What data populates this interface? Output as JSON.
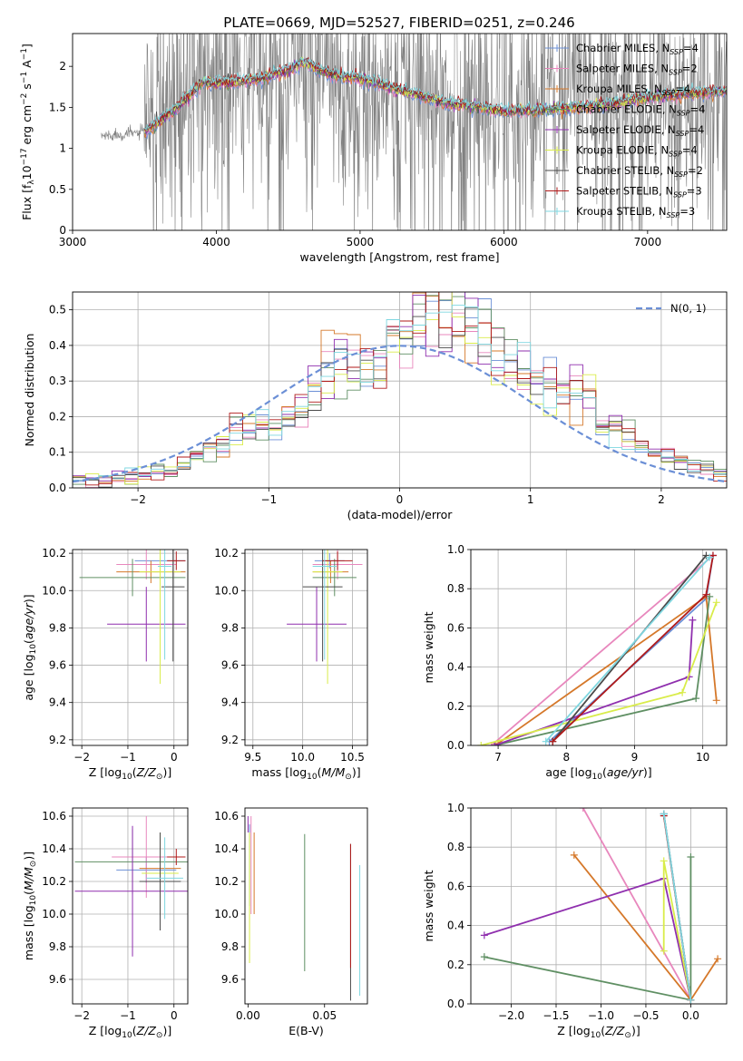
{
  "figure": {
    "title": "PLATE=0669, MJD=52527, FIBERID=0251, z=0.246"
  },
  "colors": {
    "grid": "#b0b0b0",
    "data_spectrum": "#808080",
    "series": [
      "#6b8fd6",
      "#e887bd",
      "#d5782a",
      "#5f8f63",
      "#8f2fae",
      "#d9ec4a",
      "#4a4a4a",
      "#b01a1a",
      "#7fd7e0"
    ]
  },
  "chart_data": [
    {
      "id": "spectrum",
      "type": "line",
      "xlabel": "wavelength [Angstrom, rest frame]",
      "ylabel": "Flux [f_λ 10^-17 erg cm^-2 s^-1 A^-1]",
      "xlim": [
        3000,
        7550
      ],
      "ylim": [
        0.0,
        2.4
      ],
      "xticks": [
        3000,
        4000,
        5000,
        6000,
        7000
      ],
      "yticks": [
        0.0,
        0.5,
        1.0,
        1.5,
        2.0
      ],
      "grid": false,
      "legend": "top-right",
      "data_range": [
        3200,
        7550
      ],
      "model_range": [
        3500,
        7550
      ],
      "model_shape": {
        "wavelength": [
          3200,
          3500,
          3700,
          3900,
          4100,
          4300,
          4500,
          4600,
          4800,
          5000,
          5300,
          5600,
          6000,
          6400,
          6800,
          7000,
          7200,
          7550
        ],
        "flux": [
          1.15,
          1.2,
          1.45,
          1.8,
          1.8,
          1.85,
          1.95,
          2.05,
          1.9,
          1.85,
          1.7,
          1.55,
          1.45,
          1.48,
          1.55,
          1.62,
          1.65,
          1.7
        ]
      },
      "series": [
        {
          "name": "Chabrier MILES, N_SSP=4"
        },
        {
          "name": "Salpeter MILES, N_SSP=2"
        },
        {
          "name": "Kroupa MILES, N_SSP=4"
        },
        {
          "name": "Chabrier ELODIE, N_SSP=4"
        },
        {
          "name": "Salpeter ELODIE, N_SSP=4"
        },
        {
          "name": "Kroupa ELODIE, N_SSP=4"
        },
        {
          "name": "Chabrier STELIB, N_SSP=2"
        },
        {
          "name": "Salpeter STELIB, N_SSP=3"
        },
        {
          "name": "Kroupa STELIB, N_SSP=3"
        }
      ]
    },
    {
      "id": "residuals",
      "type": "histogram",
      "xlabel": "(data-model)/error",
      "ylabel": "Normed distribution",
      "xlim": [
        -2.5,
        2.5
      ],
      "ylim": [
        0.0,
        0.55
      ],
      "xticks": [
        -2,
        -1,
        0,
        1,
        2
      ],
      "yticks": [
        0.0,
        0.1,
        0.2,
        0.3,
        0.4,
        0.5
      ],
      "grid": true,
      "legend": "top-right",
      "reference_label": "N(0, 1)",
      "bin_width": 0.1,
      "bin_start": -2.5,
      "values": [
        0.02,
        0.02,
        0.02,
        0.03,
        0.03,
        0.04,
        0.05,
        0.05,
        0.06,
        0.09,
        0.11,
        0.12,
        0.16,
        0.17,
        0.18,
        0.15,
        0.2,
        0.22,
        0.27,
        0.32,
        0.36,
        0.35,
        0.33,
        0.36,
        0.42,
        0.45,
        0.5,
        0.47,
        0.44,
        0.5,
        0.46,
        0.44,
        0.36,
        0.35,
        0.33,
        0.3,
        0.28,
        0.27,
        0.28,
        0.26,
        0.18,
        0.16,
        0.15,
        0.13,
        0.1,
        0.09,
        0.07,
        0.06,
        0.05,
        0.04
      ]
    },
    {
      "id": "age-vs-Z",
      "type": "errorbar",
      "xlabel": "Z [log10(Z/Z_sun)]",
      "ylabel": "age [log10(age/yr)]",
      "xlim": [
        -2.2,
        0.3
      ],
      "ylim": [
        9.17,
        10.22
      ],
      "xticks": [
        -2,
        -1,
        0
      ],
      "yticks": [
        9.2,
        9.4,
        9.6,
        9.8,
        10.0,
        10.2
      ],
      "grid": true,
      "points": [
        {
          "x": -0.3,
          "y": 10.16,
          "xerr": 0.55,
          "yerr": 0.04,
          "color": 0
        },
        {
          "x": -0.6,
          "y": 10.14,
          "xerr": 0.65,
          "yerr": 0.08,
          "color": 1
        },
        {
          "x": -0.5,
          "y": 10.1,
          "xerr": 0.75,
          "yerr": 0.06,
          "color": 2
        },
        {
          "x": -0.9,
          "y": 10.07,
          "xerr": 1.15,
          "yerr": 0.1,
          "color": 3
        },
        {
          "x": -0.6,
          "y": 9.82,
          "xerr": 0.85,
          "yerr": 0.2,
          "color": 4
        },
        {
          "x": -0.3,
          "y": 10.1,
          "xerr": 0.45,
          "yerr": 0.6,
          "color": 5
        },
        {
          "x": -0.02,
          "y": 10.02,
          "xerr": 0.25,
          "yerr": 0.4,
          "color": 6
        },
        {
          "x": 0.05,
          "y": 10.16,
          "xerr": 0.2,
          "yerr": 0.05,
          "color": 7
        },
        {
          "x": -0.2,
          "y": 10.13,
          "xerr": 0.15,
          "yerr": 0.5,
          "color": 8
        }
      ]
    },
    {
      "id": "age-vs-mass",
      "type": "errorbar",
      "xlabel": "mass [log10(M/M_sun)]",
      "ylabel": "",
      "xlim": [
        9.42,
        10.65
      ],
      "ylim": [
        9.17,
        10.22
      ],
      "xticks": [
        9.5,
        10.0,
        10.5
      ],
      "yticks": [
        9.2,
        9.4,
        9.6,
        9.8,
        10.0,
        10.2
      ],
      "grid": true,
      "points": [
        {
          "x": 10.27,
          "y": 10.16,
          "xerr": 0.15,
          "yerr": 0.04,
          "color": 0
        },
        {
          "x": 10.35,
          "y": 10.14,
          "xerr": 0.25,
          "yerr": 0.08,
          "color": 1
        },
        {
          "x": 10.28,
          "y": 10.1,
          "xerr": 0.18,
          "yerr": 0.06,
          "color": 2
        },
        {
          "x": 10.32,
          "y": 10.07,
          "xerr": 0.22,
          "yerr": 0.1,
          "color": 3
        },
        {
          "x": 10.14,
          "y": 9.82,
          "xerr": 0.3,
          "yerr": 0.2,
          "color": 4
        },
        {
          "x": 10.25,
          "y": 10.1,
          "xerr": 0.15,
          "yerr": 0.6,
          "color": 5
        },
        {
          "x": 10.2,
          "y": 10.02,
          "xerr": 0.2,
          "yerr": 0.4,
          "color": 6
        },
        {
          "x": 10.35,
          "y": 10.16,
          "xerr": 0.15,
          "yerr": 0.05,
          "color": 7
        },
        {
          "x": 10.22,
          "y": 10.13,
          "xerr": 0.12,
          "yerr": 0.5,
          "color": 8
        }
      ]
    },
    {
      "id": "mass-weight-vs-age",
      "type": "line",
      "xlabel": "age [log10(age/yr)]",
      "ylabel": "mass weight",
      "xlim": [
        6.6,
        10.35
      ],
      "ylim": [
        0.0,
        1.0
      ],
      "xticks": [
        7,
        8,
        9,
        10
      ],
      "yticks": [
        0.0,
        0.2,
        0.4,
        0.6,
        0.8,
        1.0
      ],
      "grid": true,
      "series": [
        {
          "x": [
            7.75,
            10.05,
            10.15
          ],
          "y": [
            0.02,
            0.75,
            0.97
          ],
          "color": 0
        },
        {
          "x": [
            6.9,
            10.15
          ],
          "y": [
            0.0,
            0.97
          ],
          "color": 1
        },
        {
          "x": [
            7.0,
            10.05,
            10.2
          ],
          "y": [
            0.01,
            0.76,
            0.23
          ],
          "color": 2
        },
        {
          "x": [
            6.95,
            9.9,
            10.1
          ],
          "y": [
            0.0,
            0.24,
            0.76
          ],
          "color": 3
        },
        {
          "x": [
            6.95,
            9.8,
            9.85
          ],
          "y": [
            0.0,
            0.35,
            0.64
          ],
          "color": 4
        },
        {
          "x": [
            6.75,
            9.7,
            10.2
          ],
          "y": [
            0.0,
            0.27,
            0.73
          ],
          "color": 5
        },
        {
          "x": [
            7.8,
            10.05
          ],
          "y": [
            0.02,
            0.97
          ],
          "color": 6
        },
        {
          "x": [
            7.8,
            10.05,
            10.15
          ],
          "y": [
            0.02,
            0.77,
            0.97
          ],
          "color": 7
        },
        {
          "x": [
            7.7,
            10.1
          ],
          "y": [
            0.02,
            0.96
          ],
          "color": 8
        }
      ]
    },
    {
      "id": "mass-vs-Z",
      "type": "errorbar",
      "xlabel": "Z [log10(Z/Z_sun)]",
      "ylabel": "mass [log10(M/M_sun)]",
      "xlim": [
        -2.2,
        0.3
      ],
      "ylim": [
        9.45,
        10.65
      ],
      "xticks": [
        -2,
        -1,
        0
      ],
      "yticks": [
        9.6,
        9.8,
        10.0,
        10.2,
        10.4,
        10.6
      ],
      "grid": true,
      "points": [
        {
          "x": -0.6,
          "y": 10.27,
          "xerr": 0.65,
          "yerr": 0.08,
          "color": 0
        },
        {
          "x": -0.6,
          "y": 10.35,
          "xerr": 0.75,
          "yerr": 0.25,
          "color": 1
        },
        {
          "x": -0.3,
          "y": 10.28,
          "xerr": 0.45,
          "yerr": 0.18,
          "color": 2
        },
        {
          "x": -0.9,
          "y": 10.32,
          "xerr": 1.25,
          "yerr": 0.2,
          "color": 3
        },
        {
          "x": -0.9,
          "y": 10.14,
          "xerr": 1.25,
          "yerr": 0.4,
          "color": 4
        },
        {
          "x": -0.3,
          "y": 10.25,
          "xerr": 0.4,
          "yerr": 0.25,
          "color": 5
        },
        {
          "x": -0.3,
          "y": 10.2,
          "xerr": 0.45,
          "yerr": 0.3,
          "color": 6
        },
        {
          "x": 0.05,
          "y": 10.35,
          "xerr": 0.2,
          "yerr": 0.05,
          "color": 7
        },
        {
          "x": -0.2,
          "y": 10.22,
          "xerr": 0.4,
          "yerr": 0.25,
          "color": 8
        }
      ]
    },
    {
      "id": "mass-vs-EBV",
      "type": "errorbar",
      "xlabel": "E(B-V)",
      "ylabel": "",
      "xlim": [
        -0.002,
        0.078
      ],
      "ylim": [
        9.45,
        10.65
      ],
      "xticks": [
        0.0,
        0.05
      ],
      "yticks": [
        9.6,
        9.8,
        10.0,
        10.2,
        10.4,
        10.6
      ],
      "grid": false,
      "points": [
        {
          "x": 0.001,
          "y": 10.3,
          "xerr": 0.0,
          "yerr": 0.25,
          "color": 0
        },
        {
          "x": 0.002,
          "y": 10.3,
          "xerr": 0.0,
          "yerr": 0.3,
          "color": 1
        },
        {
          "x": 0.004,
          "y": 10.25,
          "xerr": 0.0,
          "yerr": 0.25,
          "color": 2
        },
        {
          "x": 0.037,
          "y": 10.07,
          "xerr": 0.0,
          "yerr": 0.42,
          "color": 3
        },
        {
          "x": 0.0,
          "y": 10.55,
          "xerr": 0.0,
          "yerr": 0.05,
          "color": 4
        },
        {
          "x": 0.001,
          "y": 10.1,
          "xerr": 0.0,
          "yerr": 0.4,
          "color": 5
        },
        {
          "x": 0.067,
          "y": 9.95,
          "xerr": 0.0,
          "yerr": 0.48,
          "color": 6
        },
        {
          "x": 0.067,
          "y": 10.05,
          "xerr": 0.0,
          "yerr": 0.38,
          "color": 7
        },
        {
          "x": 0.073,
          "y": 9.9,
          "xerr": 0.0,
          "yerr": 0.4,
          "color": 8
        }
      ]
    },
    {
      "id": "mass-weight-vs-Z",
      "type": "line",
      "xlabel": "Z [log10(Z/Z_sun)]",
      "ylabel": "mass weight",
      "xlim": [
        -2.45,
        0.4
      ],
      "ylim": [
        0.0,
        1.0
      ],
      "xticks": [
        -2.0,
        -1.5,
        -1.0,
        -0.5,
        0.0
      ],
      "yticks": [
        0.0,
        0.2,
        0.4,
        0.6,
        0.8,
        1.0
      ],
      "grid": true,
      "series": [
        {
          "x": [
            -0.3,
            0.0
          ],
          "y": [
            0.97,
            0.02
          ],
          "color": 0
        },
        {
          "x": [
            -1.2,
            0.0
          ],
          "y": [
            1.0,
            0.02
          ],
          "color": 1
        },
        {
          "x": [
            -1.3,
            0.0,
            0.3
          ],
          "y": [
            0.76,
            0.02,
            0.23
          ],
          "color": 2
        },
        {
          "x": [
            -2.3,
            0.0,
            0.0
          ],
          "y": [
            0.24,
            0.02,
            0.75
          ],
          "color": 3
        },
        {
          "x": [
            -2.3,
            -0.3,
            0.0
          ],
          "y": [
            0.35,
            0.64,
            0.02
          ],
          "color": 4
        },
        {
          "x": [
            -0.3,
            -0.3,
            0.0
          ],
          "y": [
            0.27,
            0.73,
            0.02
          ],
          "color": 5
        },
        {
          "x": [
            -0.3,
            0.0
          ],
          "y": [
            0.97,
            0.02
          ],
          "color": 6
        },
        {
          "x": [
            -0.3,
            0.0
          ],
          "y": [
            0.96,
            0.02
          ],
          "color": 7
        },
        {
          "x": [
            -0.3,
            0.0
          ],
          "y": [
            0.97,
            0.02
          ],
          "color": 8
        }
      ]
    }
  ]
}
